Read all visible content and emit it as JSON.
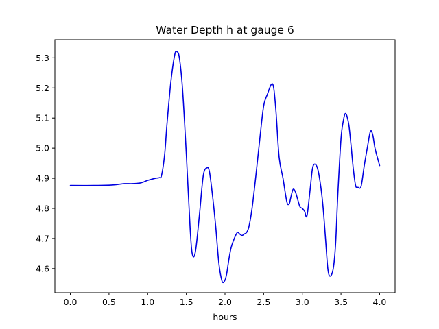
{
  "chart_data": {
    "type": "line",
    "title": "Water Depth h at gauge 6",
    "xlabel": "hours",
    "ylabel": "",
    "xlim": [
      -0.2,
      4.2
    ],
    "ylim": [
      4.52,
      5.36
    ],
    "xticks": [
      0.0,
      0.5,
      1.0,
      1.5,
      2.0,
      2.5,
      3.0,
      3.5,
      4.0
    ],
    "xtick_labels": [
      "0.0",
      "0.5",
      "1.0",
      "1.5",
      "2.0",
      "2.5",
      "3.0",
      "3.5",
      "4.0"
    ],
    "yticks": [
      4.6,
      4.7,
      4.8,
      4.9,
      5.0,
      5.1,
      5.2,
      5.3
    ],
    "ytick_labels": [
      "4.6",
      "4.7",
      "4.8",
      "4.9",
      "5.0",
      "5.1",
      "5.2",
      "5.3"
    ],
    "grid": false,
    "series": [
      {
        "color": "#0000e0",
        "x": [
          0.0,
          0.3,
          0.5,
          0.6,
          0.7,
          0.8,
          0.9,
          0.95,
          1.0,
          1.1,
          1.15,
          1.18,
          1.22,
          1.25,
          1.3,
          1.35,
          1.38,
          1.41,
          1.45,
          1.5,
          1.55,
          1.58,
          1.62,
          1.67,
          1.72,
          1.77,
          1.8,
          1.84,
          1.88,
          1.92,
          1.96,
          1.99,
          2.02,
          2.05,
          2.08,
          2.12,
          2.16,
          2.19,
          2.22,
          2.25,
          2.28,
          2.31,
          2.35,
          2.4,
          2.45,
          2.5,
          2.55,
          2.6,
          2.63,
          2.66,
          2.7,
          2.75,
          2.8,
          2.83,
          2.85,
          2.88,
          2.91,
          2.94,
          2.97,
          3.0,
          3.03,
          3.06,
          3.1,
          3.13,
          3.16,
          3.2,
          3.24,
          3.27,
          3.3,
          3.33,
          3.36,
          3.4,
          3.43,
          3.46,
          3.5,
          3.53,
          3.56,
          3.6,
          3.63,
          3.66,
          3.69,
          3.72,
          3.76,
          3.8,
          3.84,
          3.88,
          3.91,
          3.94,
          3.97,
          4.0
        ],
        "values": [
          4.876,
          4.876,
          4.877,
          4.879,
          4.882,
          4.882,
          4.884,
          4.888,
          4.893,
          4.9,
          4.902,
          4.91,
          4.98,
          5.08,
          5.22,
          5.31,
          5.32,
          5.3,
          5.2,
          4.98,
          4.73,
          4.645,
          4.66,
          4.78,
          4.91,
          4.935,
          4.92,
          4.84,
          4.74,
          4.62,
          4.56,
          4.557,
          4.58,
          4.63,
          4.67,
          4.7,
          4.72,
          4.715,
          4.71,
          4.715,
          4.72,
          4.74,
          4.8,
          4.91,
          5.03,
          5.14,
          5.18,
          5.212,
          5.2,
          5.12,
          4.97,
          4.9,
          4.822,
          4.815,
          4.835,
          4.863,
          4.855,
          4.83,
          4.805,
          4.8,
          4.79,
          4.775,
          4.86,
          4.93,
          4.947,
          4.93,
          4.87,
          4.8,
          4.7,
          4.6,
          4.575,
          4.6,
          4.68,
          4.85,
          5.03,
          5.09,
          5.115,
          5.08,
          5.01,
          4.93,
          4.875,
          4.87,
          4.873,
          4.94,
          5.0,
          5.055,
          5.045,
          5.0,
          4.97,
          4.942
        ]
      }
    ]
  }
}
